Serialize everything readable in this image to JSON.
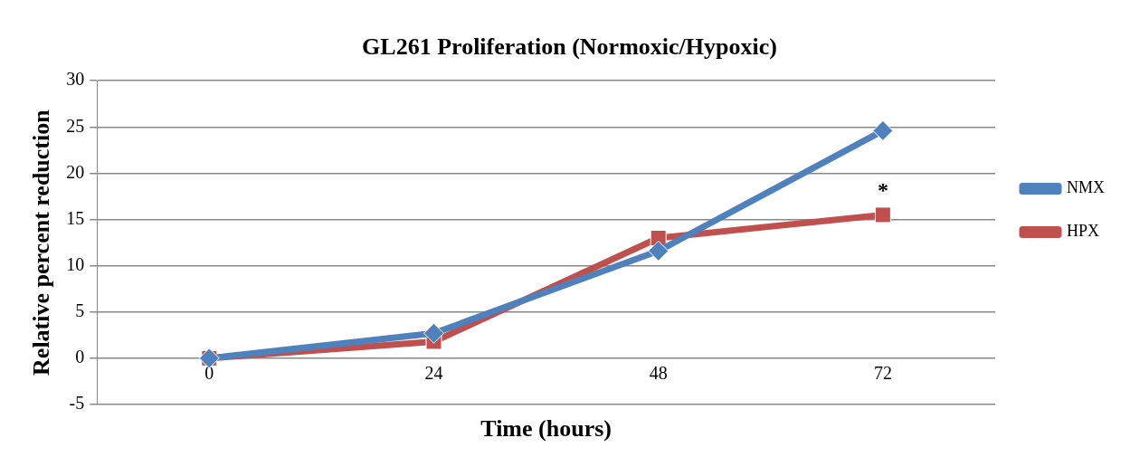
{
  "chart_data": {
    "type": "line",
    "title": "GL261 Proliferation (Normoxic/Hypoxic)",
    "xlabel": "Time (hours)",
    "ylabel": "Relative percent reduction",
    "categories": [
      "0",
      "24",
      "48",
      "72"
    ],
    "series": [
      {
        "name": "NMX",
        "color": "#4f81bd",
        "values": [
          0,
          2.7,
          11.6,
          24.6
        ],
        "marker": "diamond"
      },
      {
        "name": "HPX",
        "color": "#c0504d",
        "values": [
          0,
          1.8,
          13,
          15.5
        ],
        "marker": "square"
      }
    ],
    "ylim": [
      -5,
      30
    ],
    "yticks": [
      -5,
      0,
      5,
      10,
      15,
      20,
      25,
      30
    ],
    "grid": "y",
    "legend": "right",
    "line_style": "solid",
    "annotations": [
      {
        "text": "*",
        "x": "72",
        "y": 15.5
      }
    ]
  }
}
